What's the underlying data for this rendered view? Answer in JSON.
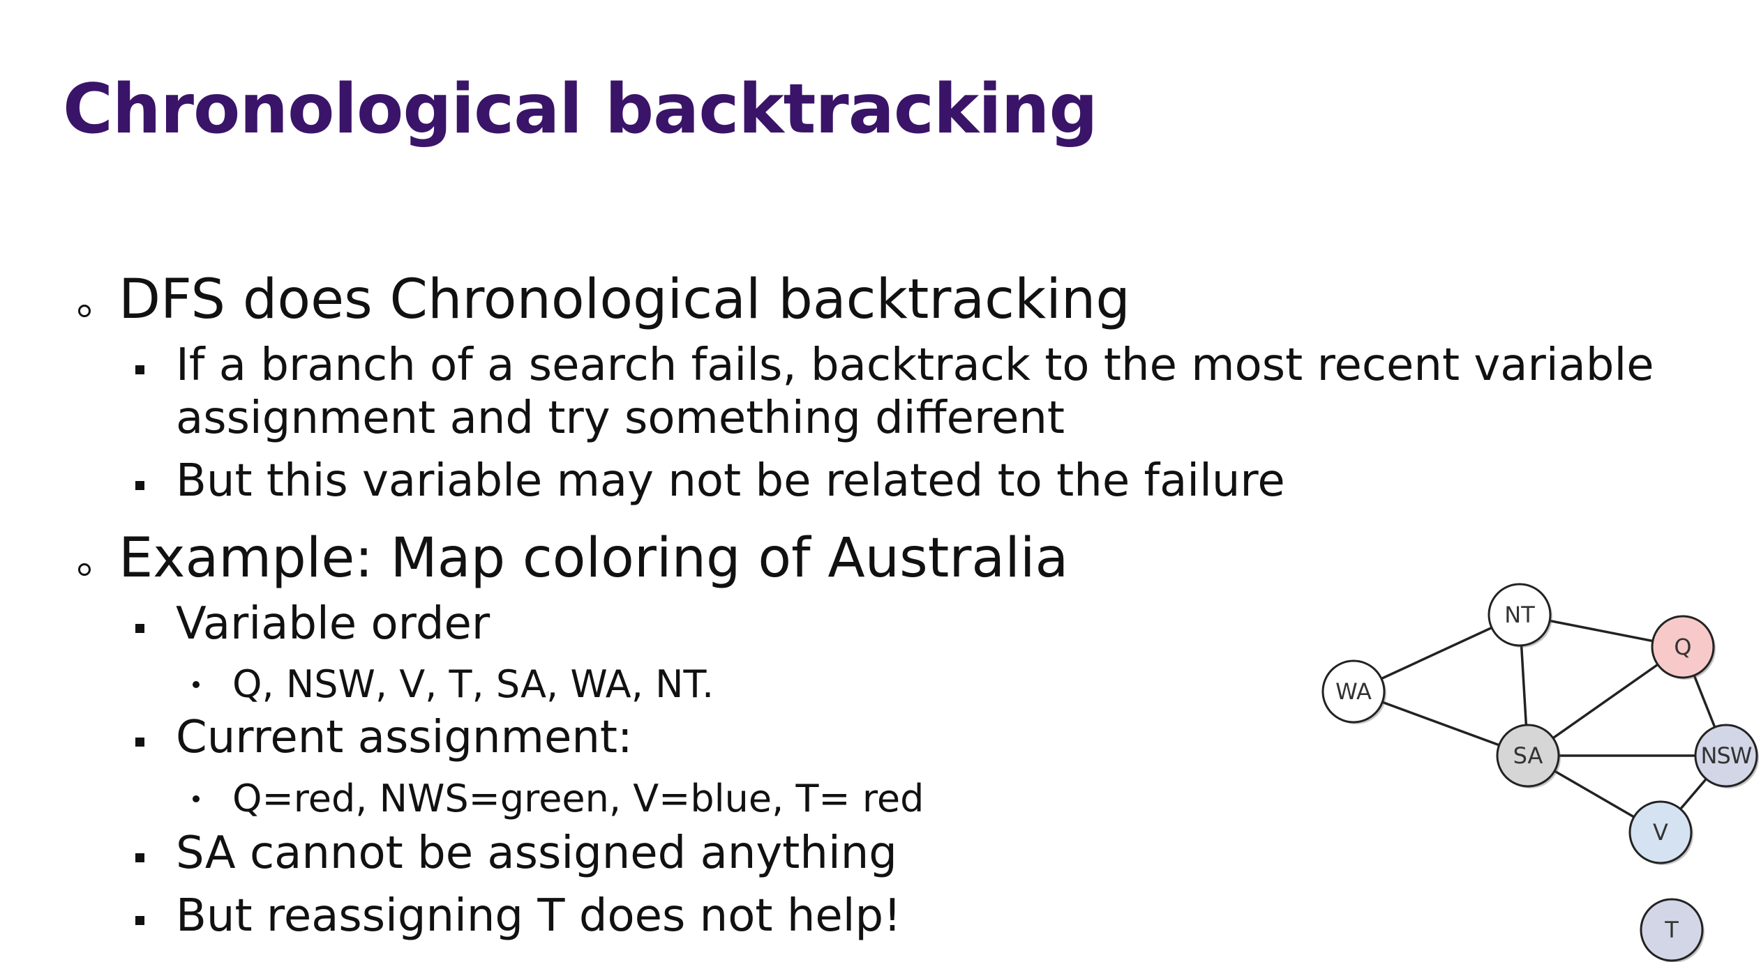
{
  "title": "Chronological backtracking",
  "bullets": {
    "b1": "DFS does Chronological backtracking",
    "b1_1_line1": "If a branch of a search fails, backtrack to the most recent variable",
    "b1_1_line2": "assignment and try something different",
    "b1_2": "But this variable may not be related to the failure",
    "b2": "Example: Map coloring of Australia",
    "b2_1": "Variable order",
    "b2_1_1": "Q, NSW, V, T, SA, WA, NT.",
    "b2_2": "Current assignment:",
    "b2_2_1": "Q=red, NWS=green, V=blue, T= red",
    "b2_3": "SA cannot be assigned anything",
    "b2_4": "But reassigning T does not help!"
  },
  "graph": {
    "nodes": [
      {
        "id": "NT",
        "label": "NT",
        "fill": "#ffffff"
      },
      {
        "id": "Q",
        "label": "Q",
        "fill": "#f7c9c9"
      },
      {
        "id": "WA",
        "label": "WA",
        "fill": "#ffffff"
      },
      {
        "id": "SA",
        "label": "SA",
        "fill": "#d6d6d6"
      },
      {
        "id": "NSW",
        "label": "NSW",
        "fill": "#d2d6e6"
      },
      {
        "id": "V",
        "label": "V",
        "fill": "#d5e2f2"
      },
      {
        "id": "T",
        "label": "T",
        "fill": "#d2d6e6"
      }
    ],
    "edges": [
      [
        "WA",
        "NT"
      ],
      [
        "WA",
        "SA"
      ],
      [
        "NT",
        "SA"
      ],
      [
        "NT",
        "Q"
      ],
      [
        "SA",
        "Q"
      ],
      [
        "SA",
        "NSW"
      ],
      [
        "SA",
        "V"
      ],
      [
        "Q",
        "NSW"
      ],
      [
        "NSW",
        "V"
      ]
    ]
  }
}
